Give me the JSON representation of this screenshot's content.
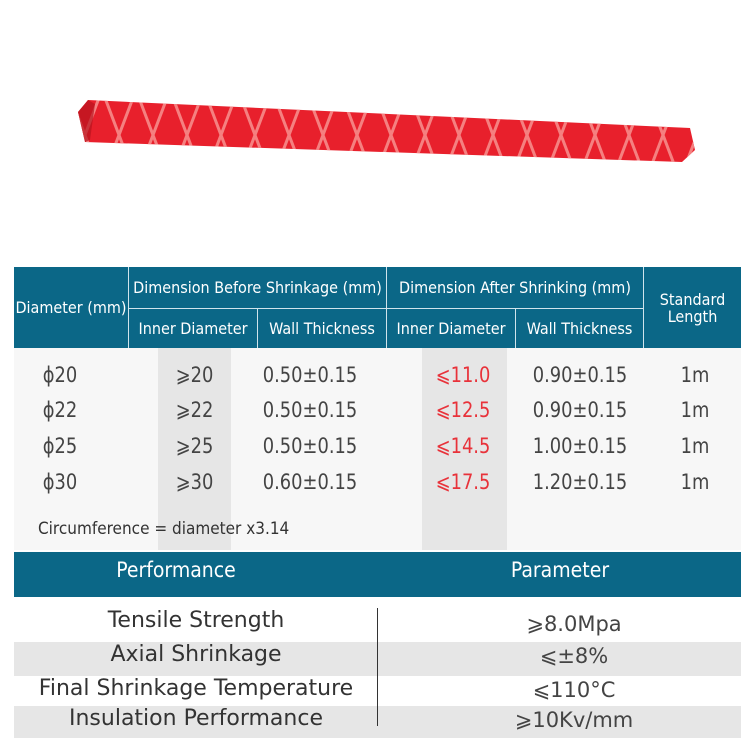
{
  "colors": {
    "header": "#0b6787",
    "accent_red": "#e8323a",
    "band": "#e6e6e6",
    "product": "#e8202c"
  },
  "product_image": {
    "icon": "red-heat-shrink-tube"
  },
  "spec_table": {
    "headers": {
      "diameter": "Diameter (mm)",
      "before": "Dimension Before Shrinkage (mm)",
      "after": "Dimension After Shrinking (mm)",
      "length": "Standard Length",
      "before_inner": "Inner Diameter",
      "before_wall": "Wall Thickness",
      "after_inner": "Inner Diameter",
      "after_wall": "Wall Thickness"
    },
    "rows": [
      {
        "diameter": "ϕ20",
        "before_inner": "⩾20",
        "before_wall": "0.50±0.15",
        "after_inner": "⩽11.0",
        "after_wall": "0.90±0.15",
        "length": "1m"
      },
      {
        "diameter": "ϕ22",
        "before_inner": "⩾22",
        "before_wall": "0.50±0.15",
        "after_inner": "⩽12.5",
        "after_wall": "0.90±0.15",
        "length": "1m"
      },
      {
        "diameter": "ϕ25",
        "before_inner": "⩾25",
        "before_wall": "0.50±0.15",
        "after_inner": "⩽14.5",
        "after_wall": "1.00±0.15",
        "length": "1m"
      },
      {
        "diameter": "ϕ30",
        "before_inner": "⩾30",
        "before_wall": "0.60±0.15",
        "after_inner": "⩽17.5",
        "after_wall": "1.20±0.15",
        "length": "1m"
      }
    ],
    "note": "Circumference = diameter x3.14"
  },
  "performance_table": {
    "headers": {
      "performance": "Performance",
      "parameter": "Parameter"
    },
    "rows": [
      {
        "name": "Tensile Strength",
        "value": "⩾8.0Mpa"
      },
      {
        "name": "Axial Shrinkage",
        "value": "⩽±8%"
      },
      {
        "name": "Final Shrinkage Temperature",
        "value": "⩽110°C"
      },
      {
        "name": "Insulation Performance",
        "value": "⩾10Kv/mm"
      }
    ]
  }
}
